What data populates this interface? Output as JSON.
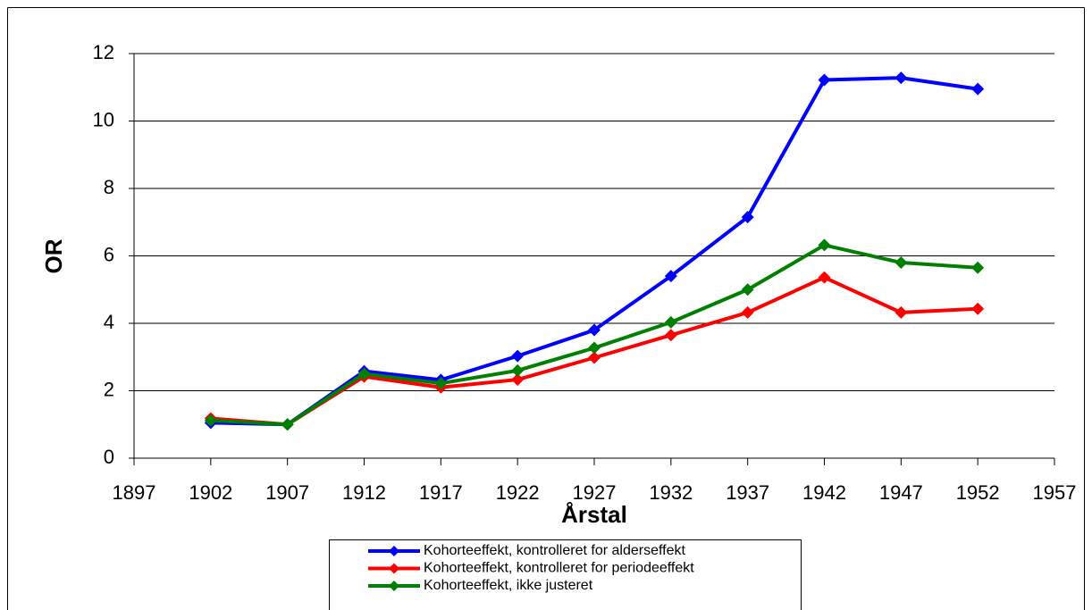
{
  "chart_data": {
    "type": "line",
    "x_label": "Årstal",
    "y_label": "OR",
    "x": [
      1902,
      1907,
      1912,
      1917,
      1922,
      1927,
      1932,
      1937,
      1942,
      1947,
      1952
    ],
    "series": [
      {
        "name": "Kohorteeffekt, kontrolleret for alderseffekt",
        "color": "#0000ff",
        "values": [
          1.05,
          1.0,
          2.58,
          2.32,
          3.03,
          3.8,
          5.4,
          7.15,
          11.22,
          11.28,
          10.95
        ]
      },
      {
        "name": "Kohorteeffekt, kontrolleret for periodeeffekt",
        "color": "#ff0000",
        "values": [
          1.18,
          1.0,
          2.42,
          2.1,
          2.33,
          2.98,
          3.65,
          4.32,
          5.36,
          4.32,
          4.43
        ]
      },
      {
        "name": "Kohorteeffekt, ikke justeret",
        "color": "#008000",
        "values": [
          1.12,
          1.0,
          2.5,
          2.22,
          2.6,
          3.27,
          4.03,
          5.0,
          6.32,
          5.8,
          5.65
        ]
      }
    ],
    "xlim": [
      1897,
      1957
    ],
    "xticks": [
      1897,
      1902,
      1907,
      1912,
      1917,
      1922,
      1927,
      1932,
      1937,
      1942,
      1947,
      1952,
      1957
    ],
    "ylim": [
      0,
      12
    ],
    "yticks": [
      0,
      2,
      4,
      6,
      8,
      10,
      12
    ],
    "grid": true,
    "legend": "bottom"
  }
}
